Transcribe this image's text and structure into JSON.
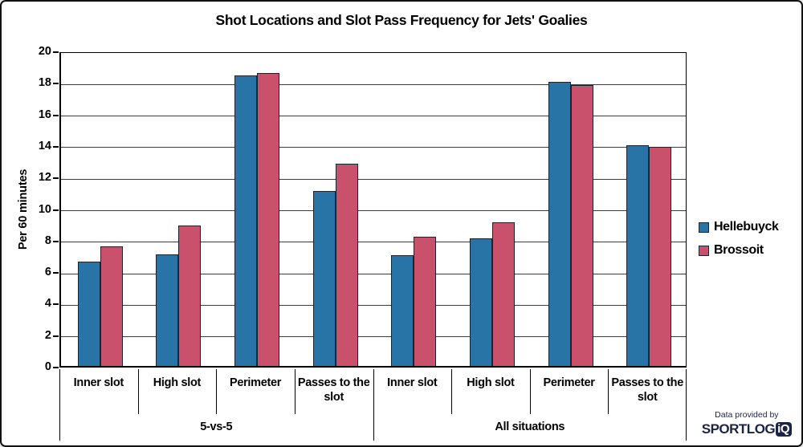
{
  "chart_data": {
    "type": "bar",
    "title": "Shot Locations and Slot Pass Frequency for Jets' Goalies",
    "ylabel": "Per 60 minutes",
    "ylim": [
      0,
      20
    ],
    "ytick_step": 2,
    "grid": true,
    "legend_position": "right",
    "group_labels": [
      "5-vs-5",
      "All situations"
    ],
    "categories": [
      "Inner slot",
      "High slot",
      "Perimeter",
      "Passes to the slot",
      "Inner slot",
      "High slot",
      "Perimeter",
      "Passes to the slot"
    ],
    "series": [
      {
        "name": "Hellebuyck",
        "color": "#2874A6",
        "values": [
          6.6,
          7.1,
          18.4,
          11.1,
          7.0,
          8.1,
          18.0,
          14.0
        ]
      },
      {
        "name": "Brossoit",
        "color": "#C9516B",
        "values": [
          7.6,
          8.9,
          18.6,
          12.8,
          8.2,
          9.1,
          17.8,
          13.9
        ]
      }
    ],
    "bar_border_color": "#1A2332",
    "gridline_color": "#3D3D3D"
  },
  "attribution": {
    "prefix": "Data provided by",
    "brand_main": "SPORTLOG",
    "brand_badge": "iQ",
    "brand_color": "#1B2442"
  }
}
